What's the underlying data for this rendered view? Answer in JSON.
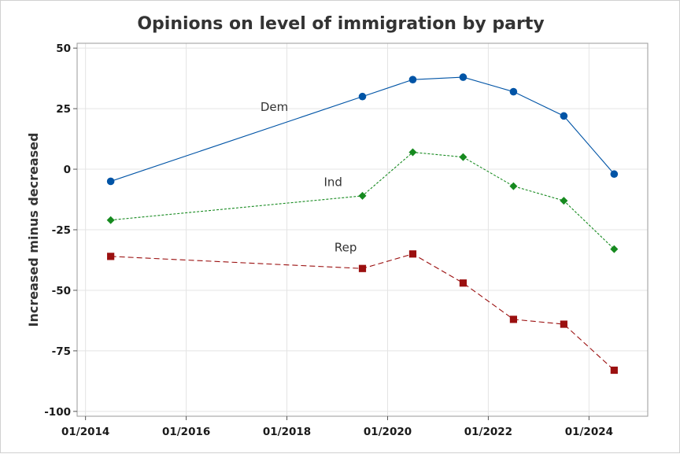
{
  "chart_data": {
    "type": "line",
    "title": "Opinions on level of immigration by party",
    "xlabel": "",
    "ylabel": "Increased minus decreased",
    "x_ticks": [
      "01/2014",
      "01/2016",
      "01/2018",
      "01/2020",
      "01/2022",
      "01/2024"
    ],
    "x_tick_years": [
      2014,
      2016,
      2018,
      2020,
      2022,
      2024
    ],
    "y_ticks": [
      "50",
      "25",
      "0",
      "-25",
      "-50",
      "-75",
      "-100"
    ],
    "y_tick_values": [
      50,
      25,
      0,
      -25,
      -50,
      -75,
      -100
    ],
    "xlim": [
      "2013-11",
      "2025-03"
    ],
    "ylim": [
      -102,
      52
    ],
    "grid": true,
    "x": [
      "2014-07",
      "2019-07",
      "2020-07",
      "2021-07",
      "2022-07",
      "2023-07",
      "2024-07"
    ],
    "series": [
      {
        "name": "Dem",
        "values": [
          -5,
          30,
          37,
          38,
          32,
          22,
          -2
        ],
        "color": "#0054a6",
        "marker": "circle",
        "dash": "solid"
      },
      {
        "name": "Ind",
        "values": [
          -21,
          -11,
          7,
          5,
          -7,
          -13,
          -33
        ],
        "color": "#168a1f",
        "marker": "diamond",
        "dash": "dashed"
      },
      {
        "name": "Rep",
        "values": [
          -36,
          -41,
          -35,
          -47,
          -62,
          -64,
          -83
        ],
        "color": "#9b1010",
        "marker": "square",
        "dash": "longdash"
      }
    ],
    "series_label_points": [
      {
        "series": "Dem",
        "x": "2017-10",
        "y": 24
      },
      {
        "series": "Ind",
        "x": "2018-12",
        "y": -7
      },
      {
        "series": "Rep",
        "x": "2019-03",
        "y": -34
      }
    ]
  }
}
